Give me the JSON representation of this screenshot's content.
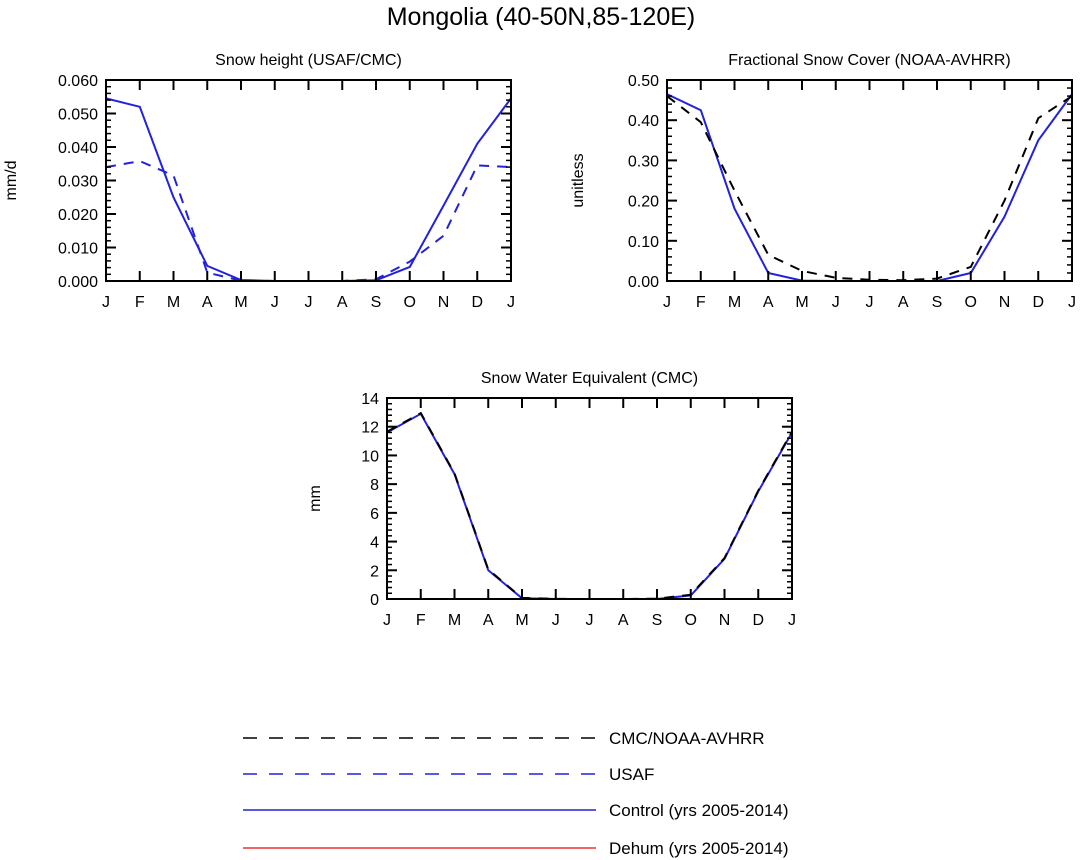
{
  "figure": {
    "title": "Mongolia (40-50N,85-120E)"
  },
  "legend": [
    {
      "key": "obs",
      "label": "CMC/NOAA-AVHRR",
      "color": "#000000",
      "dash": "dashed"
    },
    {
      "key": "usaf",
      "label": "USAF",
      "color": "#2222dd",
      "dash": "dashed"
    },
    {
      "key": "control",
      "label": "Control (yrs 2005-2014)",
      "color": "#2222dd",
      "dash": "solid"
    },
    {
      "key": "dehum",
      "label": "Dehum (yrs 2005-2014)",
      "color": "#ee3333",
      "dash": "solid"
    }
  ],
  "colors": {
    "control": "#2222dd",
    "usaf": "#2222dd",
    "obs": "#000000",
    "dehum": "#ee3333"
  },
  "chart_data": [
    {
      "id": "snow-height",
      "type": "line",
      "title": "Snow height (USAF/CMC)",
      "xlabel": "",
      "ylabel": "mm/d",
      "categories": [
        "J",
        "F",
        "M",
        "A",
        "M",
        "J",
        "J",
        "A",
        "S",
        "O",
        "N",
        "D",
        "J"
      ],
      "ylim": [
        0,
        0.06
      ],
      "yticks": [
        "0.000",
        "0.010",
        "0.020",
        "0.030",
        "0.040",
        "0.050",
        "0.060"
      ],
      "series": [
        {
          "key": "control",
          "values": [
            0.0545,
            0.052,
            0.025,
            0.0045,
            0.0003,
            0,
            0,
            0,
            0.0002,
            0.0042,
            0.0225,
            0.041,
            0.0545
          ]
        },
        {
          "key": "usaf",
          "values": [
            0.034,
            0.0358,
            0.0315,
            0.0025,
            0.0001,
            0,
            0,
            0,
            0.0005,
            0.0058,
            0.0135,
            0.0345,
            0.034
          ]
        },
        {
          "key": "dehum",
          "values": [
            0,
            0,
            0,
            0,
            0,
            0,
            0,
            0,
            0,
            0,
            0,
            0,
            0
          ]
        }
      ]
    },
    {
      "id": "snow-cover",
      "type": "line",
      "title": "Fractional Snow Cover (NOAA-AVHRR)",
      "xlabel": "",
      "ylabel": "unitless",
      "categories": [
        "J",
        "F",
        "M",
        "A",
        "M",
        "J",
        "J",
        "A",
        "S",
        "O",
        "N",
        "D",
        "J"
      ],
      "ylim": [
        0,
        0.5
      ],
      "yticks": [
        "0.00",
        "0.10",
        "0.20",
        "0.30",
        "0.40",
        "0.50"
      ],
      "series": [
        {
          "key": "control",
          "values": [
            0.465,
            0.425,
            0.18,
            0.02,
            0.001,
            0,
            0,
            0,
            0,
            0.02,
            0.16,
            0.35,
            0.465
          ]
        },
        {
          "key": "obs",
          "values": [
            0.46,
            0.395,
            0.225,
            0.065,
            0.025,
            0.008,
            0.003,
            0.002,
            0.006,
            0.035,
            0.2,
            0.405,
            0.46
          ]
        },
        {
          "key": "dehum",
          "values": [
            0,
            0,
            0,
            0,
            0,
            0,
            0,
            0,
            0,
            0,
            0,
            0,
            0
          ]
        }
      ]
    },
    {
      "id": "swe",
      "type": "line",
      "title": "Snow Water Equivalent (CMC)",
      "xlabel": "",
      "ylabel": "mm",
      "categories": [
        "J",
        "F",
        "M",
        "A",
        "M",
        "J",
        "J",
        "A",
        "S",
        "O",
        "N",
        "D",
        "J"
      ],
      "ylim": [
        0,
        14
      ],
      "yticks": [
        "0",
        "2",
        "4",
        "6",
        "8",
        "10",
        "12",
        "14"
      ],
      "series": [
        {
          "key": "control",
          "values": [
            11.6,
            12.9,
            8.7,
            2.0,
            0.05,
            0,
            0,
            0,
            0,
            0.25,
            2.8,
            7.5,
            11.6
          ]
        },
        {
          "key": "obs",
          "values": [
            11.65,
            12.95,
            8.75,
            2.05,
            0.08,
            0.01,
            0,
            0,
            0.02,
            0.3,
            2.85,
            7.55,
            11.65
          ]
        },
        {
          "key": "dehum",
          "values": [
            0,
            0,
            0,
            0,
            0,
            0,
            0,
            0,
            0,
            0,
            0,
            0,
            0
          ]
        }
      ]
    }
  ]
}
